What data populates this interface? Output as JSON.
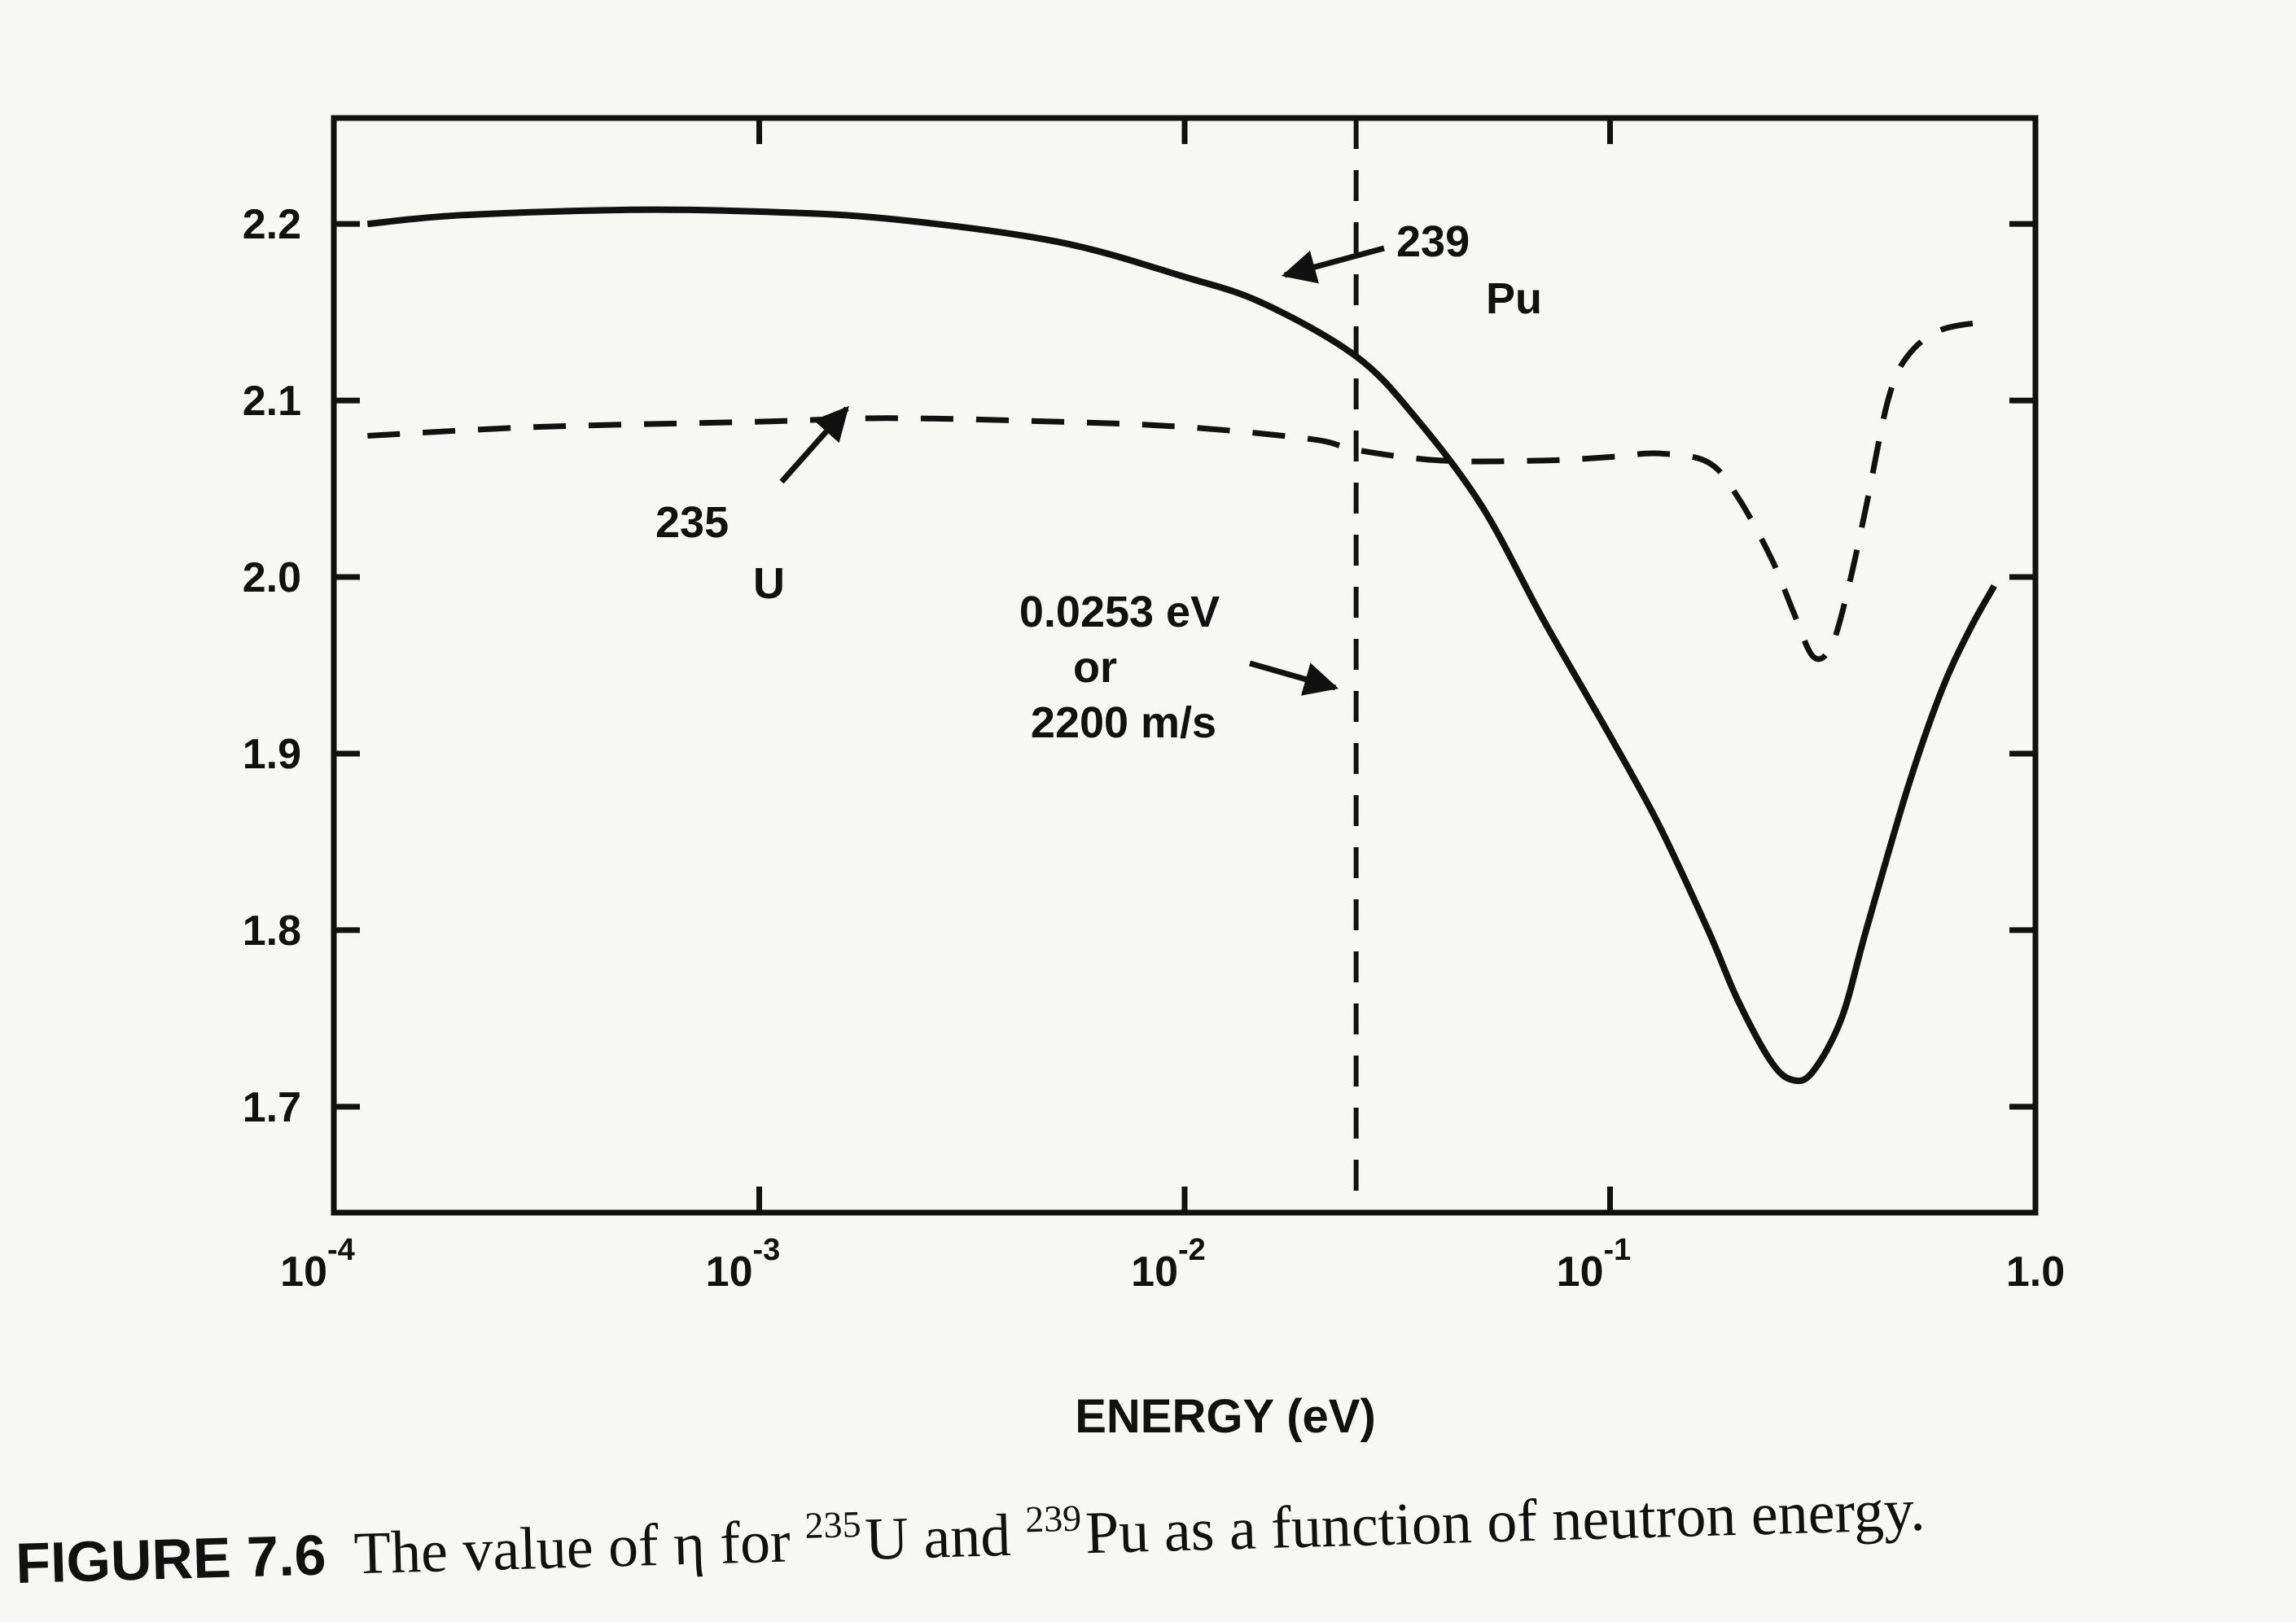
{
  "chart_data": {
    "type": "line",
    "xscale": "log",
    "xlim": [
      0.0001,
      1.0
    ],
    "ylim": [
      1.64,
      2.26
    ],
    "xlabel": "ENERGY (eV)",
    "ylabel": "",
    "x_ticks": [
      {
        "base": "10",
        "exp": "-4"
      },
      {
        "base": "10",
        "exp": "-3"
      },
      {
        "base": "10",
        "exp": "-2"
      },
      {
        "base": "10",
        "exp": "-1"
      },
      {
        "base": "1.0",
        "exp": ""
      }
    ],
    "y_ticks": [
      "1.7",
      "1.8",
      "1.9",
      "2.0",
      "2.1",
      "2.2"
    ],
    "series": [
      {
        "name": "239Pu",
        "style": "solid",
        "x": [
          0.00012,
          0.0002,
          0.0005,
          0.001,
          0.002,
          0.005,
          0.01,
          0.0153,
          0.0253,
          0.035,
          0.05,
          0.07,
          0.1,
          0.13,
          0.17,
          0.2,
          0.24,
          0.27,
          0.3,
          0.35,
          0.4,
          0.5,
          0.6,
          0.7,
          0.8
        ],
        "y": [
          2.2,
          2.205,
          2.208,
          2.207,
          2.203,
          2.19,
          2.17,
          2.155,
          2.125,
          2.09,
          2.04,
          1.975,
          1.91,
          1.86,
          1.8,
          1.76,
          1.725,
          1.715,
          1.72,
          1.75,
          1.8,
          1.88,
          1.935,
          1.97,
          1.995
        ]
      },
      {
        "name": "235U",
        "style": "dashed",
        "x": [
          0.00012,
          0.0003,
          0.001,
          0.002,
          0.005,
          0.01,
          0.02,
          0.0253,
          0.04,
          0.07,
          0.1,
          0.13,
          0.17,
          0.2,
          0.24,
          0.27,
          0.3,
          0.33,
          0.36,
          0.4,
          0.45,
          0.5,
          0.6,
          0.8
        ],
        "y": [
          2.08,
          2.085,
          2.088,
          2.09,
          2.088,
          2.085,
          2.078,
          2.072,
          2.066,
          2.066,
          2.068,
          2.07,
          2.065,
          2.045,
          2.01,
          1.98,
          1.955,
          1.96,
          1.99,
          2.04,
          2.1,
          2.125,
          2.14,
          2.145
        ]
      }
    ],
    "reference_line": {
      "x": 0.0253,
      "style": "dashed"
    },
    "annotations": {
      "pu": {
        "num": "239",
        "sym": "Pu"
      },
      "u": {
        "num": "235",
        "sym": "U"
      },
      "thermal": [
        "0.0253 eV",
        "or",
        "2200 m/s"
      ]
    },
    "caption": {
      "label": "FIGURE 7.6",
      "part1": "The value of η for ",
      "sup1": "235",
      "part2": "U and ",
      "sup2": "239",
      "part3": "Pu as a function of neutron energy."
    },
    "grid": false,
    "legend": "none"
  }
}
